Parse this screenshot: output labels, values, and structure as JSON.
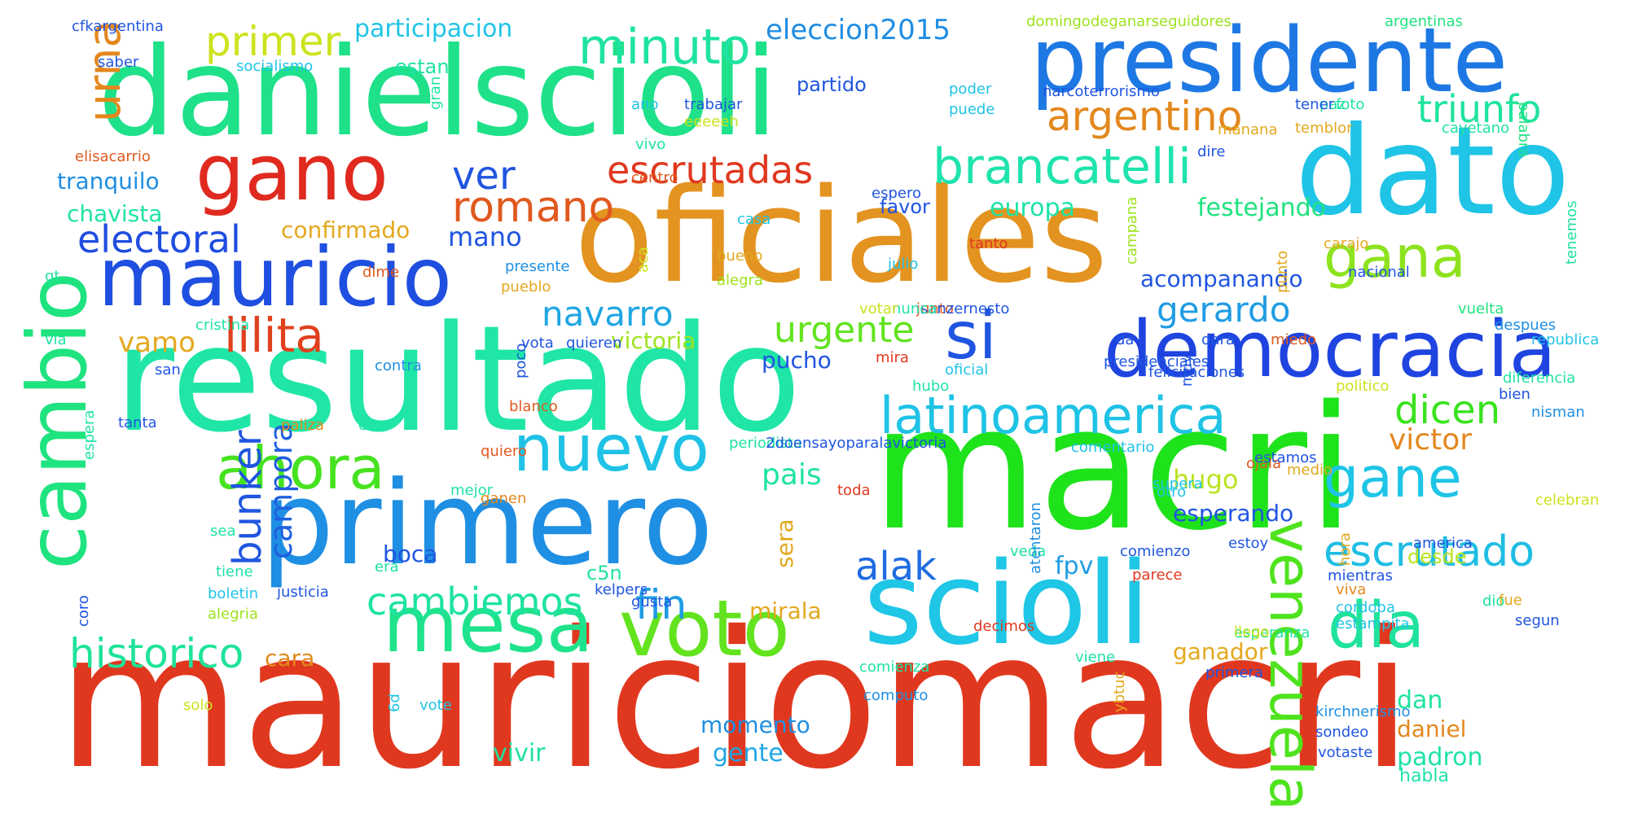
{
  "words": [
    {
      "text": "mauriciomacri",
      "color": "#e0381f"
    },
    {
      "text": "danielscioli",
      "color": "#1ee18a"
    },
    {
      "text": "macri",
      "color": "#1ee31b"
    },
    {
      "text": "oficiales",
      "color": "#e39320"
    },
    {
      "text": "resultado",
      "color": "#1fe6a6"
    },
    {
      "text": "primero",
      "color": "#1f8fe3"
    },
    {
      "text": "scioli",
      "color": "#1fc6e6"
    },
    {
      "text": "dato",
      "color": "#1fc4e6"
    },
    {
      "text": "presidente",
      "color": "#1e78e4"
    },
    {
      "text": "mauricio",
      "color": "#1f4fe0"
    },
    {
      "text": "gano",
      "color": "#e02a1f"
    },
    {
      "text": "democracia",
      "color": "#1f44e0"
    },
    {
      "text": "mesa",
      "color": "#1fe38c"
    },
    {
      "text": "voto",
      "color": "#62e31e"
    },
    {
      "text": "cambio",
      "color": "#1fe37f"
    },
    {
      "text": "venezuela",
      "color": "#4fe31e"
    },
    {
      "text": "dia",
      "color": "#1fe39c"
    },
    {
      "text": "nuevo",
      "color": "#1fc2e6"
    },
    {
      "text": "ahora",
      "color": "#45e31f"
    },
    {
      "text": "latinoamerica",
      "color": "#1fc3e6"
    },
    {
      "text": "gana",
      "color": "#8de31e"
    },
    {
      "text": "gane",
      "color": "#1fc5e6"
    },
    {
      "text": "si",
      "color": "#1f55e0"
    },
    {
      "text": "minuto",
      "color": "#1fe3a0"
    },
    {
      "text": "brancatelli",
      "color": "#1fe3ad"
    },
    {
      "text": "escrutado",
      "color": "#1fbde3"
    },
    {
      "text": "historico",
      "color": "#1fe39a"
    },
    {
      "text": "escrutadas",
      "color": "#e0381f"
    },
    {
      "text": "lilita",
      "color": "#e0411f"
    },
    {
      "text": "romano",
      "color": "#e0591f"
    },
    {
      "text": "argentino",
      "color": "#e3881e"
    },
    {
      "text": "cambiemos",
      "color": "#1fe3a0"
    },
    {
      "text": "urna",
      "color": "#e3881e"
    },
    {
      "text": "primer",
      "color": "#cce31e"
    },
    {
      "text": "fin",
      "color": "#1f9ce3"
    },
    {
      "text": "electoral",
      "color": "#1f4de0"
    },
    {
      "text": "triunfo",
      "color": "#1fe39c"
    },
    {
      "text": "gerardo",
      "color": "#1f9ce3"
    },
    {
      "text": "dicen",
      "color": "#39e31e"
    },
    {
      "text": "urgente",
      "color": "#62e31e"
    },
    {
      "text": "navarro",
      "color": "#1fa6e3"
    },
    {
      "text": "ver",
      "color": "#1f55e0"
    },
    {
      "text": "alak",
      "color": "#1f6ce0"
    },
    {
      "text": "bunker",
      "color": "#1f55e0"
    },
    {
      "text": "eleccion2015",
      "color": "#1f8de3"
    },
    {
      "text": "campora",
      "color": "#1f5fe0"
    },
    {
      "text": "victor",
      "color": "#e3881e"
    },
    {
      "text": "pais",
      "color": "#1fe3a3"
    },
    {
      "text": "hugo",
      "color": "#b8e31e"
    },
    {
      "text": "vamo",
      "color": "#e3a81e"
    },
    {
      "text": "mano",
      "color": "#1f55e0"
    },
    {
      "text": "fpv",
      "color": "#1f9ce3"
    },
    {
      "text": "participacion",
      "color": "#1fc4e6"
    },
    {
      "text": "europa",
      "color": "#1fe3a8"
    },
    {
      "text": "festejando",
      "color": "#1fe37f"
    },
    {
      "text": "confirmado",
      "color": "#e3a81e"
    },
    {
      "text": "chavista",
      "color": "#1fe3a6"
    },
    {
      "text": "tranquilo",
      "color": "#1f8fe3"
    },
    {
      "text": "acompanando",
      "color": "#1f55e0"
    },
    {
      "text": "esperando",
      "color": "#1f55e0"
    },
    {
      "text": "pucho",
      "color": "#1f55e0"
    },
    {
      "text": "victoria",
      "color": "#9ee31e"
    },
    {
      "text": "mirala",
      "color": "#e3a81e"
    },
    {
      "text": "ganador",
      "color": "#e3a81e"
    },
    {
      "text": "momento",
      "color": "#1f8fe3"
    },
    {
      "text": "gente",
      "color": "#1fa6e3"
    },
    {
      "text": "daniel",
      "color": "#e3881e"
    },
    {
      "text": "padron",
      "color": "#1fe3a8"
    },
    {
      "text": "dan",
      "color": "#1fe39c"
    },
    {
      "text": "vivir",
      "color": "#1fe3a0"
    },
    {
      "text": "cara",
      "color": "#e3881e"
    },
    {
      "text": "boca",
      "color": "#1f55e0"
    },
    {
      "text": "sera",
      "color": "#e3a81e"
    },
    {
      "text": "estan",
      "color": "#1fe3a3"
    },
    {
      "text": "partido",
      "color": "#1f55e0"
    },
    {
      "text": "favor",
      "color": "#1f55e0"
    },
    {
      "text": "desde",
      "color": "#b8e31e"
    },
    {
      "text": "habla",
      "color": "#1fe3a8"
    },
    {
      "text": "c5n",
      "color": "#1fe39c"
    },
    {
      "text": "cfkargentina",
      "color": "#1f55e0"
    },
    {
      "text": "saber",
      "color": "#1f55e0"
    },
    {
      "text": "socialismo",
      "color": "#1fc4e6"
    },
    {
      "text": "domingodeganarseguidores",
      "color": "#9ee31e"
    },
    {
      "text": "argentinas",
      "color": "#1fe37f"
    },
    {
      "text": "poder",
      "color": "#1fc4e6"
    },
    {
      "text": "narcoterrorismo",
      "color": "#1f55e0"
    },
    {
      "text": "paz",
      "color": "#1fe3a3"
    },
    {
      "text": "tener",
      "color": "#1f55e0"
    },
    {
      "text": "foto",
      "color": "#1fe3a8"
    },
    {
      "text": "palabra",
      "color": "#1fe37f"
    },
    {
      "text": "trabajar",
      "color": "#1f55e0"
    },
    {
      "text": "eeeeeh",
      "color": "#cce31e"
    },
    {
      "text": "ano",
      "color": "#1fc4e6"
    },
    {
      "text": "gran",
      "color": "#1fe3a3"
    },
    {
      "text": "puede",
      "color": "#1fc4e6"
    },
    {
      "text": "manana",
      "color": "#e3a81e"
    },
    {
      "text": "temblor",
      "color": "#e3a81e"
    },
    {
      "text": "cayetano",
      "color": "#1fe3a3"
    },
    {
      "text": "dire",
      "color": "#1f55e0"
    },
    {
      "text": "vivo",
      "color": "#1fe3a8"
    },
    {
      "text": "elisacarrio",
      "color": "#e0591f"
    },
    {
      "text": "centro",
      "color": "#e0591f"
    },
    {
      "text": "espero",
      "color": "#1f55e0"
    },
    {
      "text": "casa",
      "color": "#1fc4e6"
    },
    {
      "text": "gt",
      "color": "#1fe39c"
    },
    {
      "text": "presente",
      "color": "#1f8fe3"
    },
    {
      "text": "aca",
      "color": "#cce31e"
    },
    {
      "text": "bueno",
      "color": "#e3a81e"
    },
    {
      "text": "julio",
      "color": "#1fc4e6"
    },
    {
      "text": "tanto",
      "color": "#e0381f"
    },
    {
      "text": "campana",
      "color": "#9ee31e"
    },
    {
      "text": "punto",
      "color": "#e3a81e"
    },
    {
      "text": "carajo",
      "color": "#e3a81e"
    },
    {
      "text": "tenemos",
      "color": "#1fe39c"
    },
    {
      "text": "dime",
      "color": "#e0591f"
    },
    {
      "text": "pueblo",
      "color": "#e3a81e"
    },
    {
      "text": "alegra",
      "color": "#9ee31e"
    },
    {
      "text": "nacional",
      "color": "#1f55e0"
    },
    {
      "text": "junto",
      "color": "#e0591f"
    },
    {
      "text": "sanzernesto",
      "color": "#1f55e0"
    },
    {
      "text": "nunca",
      "color": "#1fe3a8"
    },
    {
      "text": "votar",
      "color": "#cce31e"
    },
    {
      "text": "vuelta",
      "color": "#1fe37f"
    },
    {
      "text": "despues",
      "color": "#1f8fe3"
    },
    {
      "text": "via",
      "color": "#1fe3a3"
    },
    {
      "text": "cristina",
      "color": "#1fe3a8"
    },
    {
      "text": "miedo",
      "color": "#e0591f"
    },
    {
      "text": "da",
      "color": "#1f55e0"
    },
    {
      "text": "vota",
      "color": "#1f55e0"
    },
    {
      "text": "quieren",
      "color": "#1f55e0"
    },
    {
      "text": "dara",
      "color": "#1f55e0"
    },
    {
      "text": "republica",
      "color": "#1fc4e6"
    },
    {
      "text": "mira",
      "color": "#e0381f"
    },
    {
      "text": "contra",
      "color": "#1f8fe3"
    },
    {
      "text": "oficial",
      "color": "#1fc4e6"
    },
    {
      "text": "presidenciales",
      "color": "#1f55e0"
    },
    {
      "text": "diferencia",
      "color": "#1fe3a3"
    },
    {
      "text": "felicitaciones",
      "color": "#1f55e0"
    },
    {
      "text": "politico",
      "color": "#cce31e"
    },
    {
      "text": "hubo",
      "color": "#1fe3a8"
    },
    {
      "text": "muy",
      "color": "#1f55e0"
    },
    {
      "text": "san",
      "color": "#1f55e0"
    },
    {
      "text": "bien",
      "color": "#1f55e0"
    },
    {
      "text": "nisman",
      "color": "#1f8fe3"
    },
    {
      "text": "poco",
      "color": "#1f55e0"
    },
    {
      "text": "blanco",
      "color": "#e0591f"
    },
    {
      "text": "tanta",
      "color": "#1f55e0"
    },
    {
      "text": "paliza",
      "color": "#e3881e"
    },
    {
      "text": "eres",
      "color": "#1fe3a8"
    },
    {
      "text": "quiero",
      "color": "#e0591f"
    },
    {
      "text": "periodista",
      "color": "#1fe3a3"
    },
    {
      "text": "2doensayoparalavictoria",
      "color": "#1f55e0"
    },
    {
      "text": "comentario",
      "color": "#1fc4e6"
    },
    {
      "text": "ojala",
      "color": "#e0591f"
    },
    {
      "text": "estamos",
      "color": "#1f55e0"
    },
    {
      "text": "medio",
      "color": "#e3a81e"
    },
    {
      "text": "espera",
      "color": "#1fe3a8"
    },
    {
      "text": "mejor",
      "color": "#1fe3a8"
    },
    {
      "text": "toda",
      "color": "#e0381f"
    },
    {
      "text": "supera",
      "color": "#1fc4e6"
    },
    {
      "text": "ganen",
      "color": "#e3881e"
    },
    {
      "text": "otro",
      "color": "#1fc4e6"
    },
    {
      "text": "celebran",
      "color": "#cce31e"
    },
    {
      "text": "sea",
      "color": "#1fe3a3"
    },
    {
      "text": "tiene",
      "color": "#1fe3a8"
    },
    {
      "text": "era",
      "color": "#1fe3a8"
    },
    {
      "text": "veda",
      "color": "#1fe3a3"
    },
    {
      "text": "comienzo",
      "color": "#1f55e0"
    },
    {
      "text": "estoy",
      "color": "#1f55e0"
    },
    {
      "text": "america",
      "color": "#1f55e0"
    },
    {
      "text": "boletin",
      "color": "#1fc4e6"
    },
    {
      "text": "alegria",
      "color": "#9ee31e"
    },
    {
      "text": "kelpers",
      "color": "#1f55e0"
    },
    {
      "text": "gusta",
      "color": "#1f55e0"
    },
    {
      "text": "justicia",
      "color": "#1f55e0"
    },
    {
      "text": "atentaron",
      "color": "#1f8fe3"
    },
    {
      "text": "parece",
      "color": "#e0381f"
    },
    {
      "text": "mientras",
      "color": "#1f55e0"
    },
    {
      "text": "hora",
      "color": "#e3a81e"
    },
    {
      "text": "viva",
      "color": "#e3881e"
    },
    {
      "text": "dio",
      "color": "#1fe3a3"
    },
    {
      "text": "fue",
      "color": "#e3a81e"
    },
    {
      "text": "cordoba",
      "color": "#1fc4e6"
    },
    {
      "text": "segun",
      "color": "#1f55e0"
    },
    {
      "text": "coro",
      "color": "#1f55e0"
    },
    {
      "text": "decimos",
      "color": "#e0381f"
    },
    {
      "text": "esperanza",
      "color": "#1fe3a3"
    },
    {
      "text": "llego",
      "color": "#cce31e"
    },
    {
      "text": "estampita",
      "color": "#1fc4e6"
    },
    {
      "text": "viene",
      "color": "#1fe3a8"
    },
    {
      "text": "primera",
      "color": "#1f55e0"
    },
    {
      "text": "comienza",
      "color": "#1fe3a3"
    },
    {
      "text": "computo",
      "color": "#1f8fe3"
    },
    {
      "text": "solo",
      "color": "#cce31e"
    },
    {
      "text": "vote",
      "color": "#1fc4e6"
    },
    {
      "text": "6d",
      "color": "#1fc4e6"
    },
    {
      "text": "ybtuc",
      "color": "#e3a81e"
    },
    {
      "text": "kirchnerismo",
      "color": "#1f8fe3"
    },
    {
      "text": "sondeo",
      "color": "#1f55e0"
    },
    {
      "text": "votaste",
      "color": "#1f55e0"
    }
  ]
}
